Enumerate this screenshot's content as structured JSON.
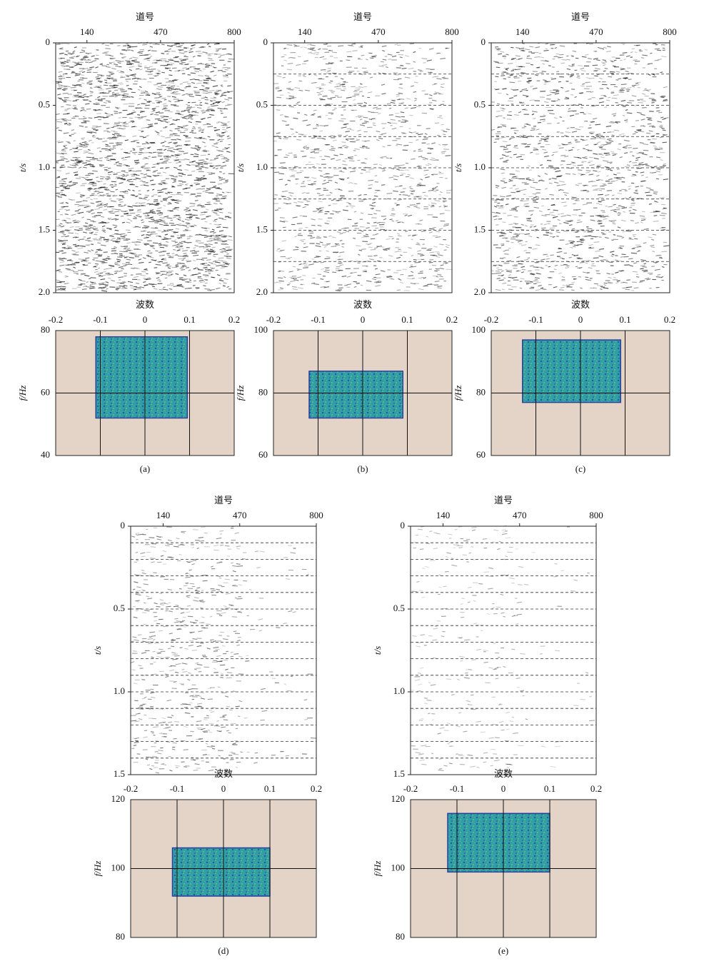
{
  "panels": [
    {
      "label": "(a)",
      "seismic": {
        "xlabel": "道号",
        "ylabel": "t/s",
        "xlim": [
          0,
          800
        ],
        "xticks": [
          140,
          470,
          800
        ],
        "ylim": [
          0,
          2
        ],
        "yticks": [
          0,
          0.5,
          {
            "value": 1,
            "label": "1.0"
          },
          1.5,
          {
            "value": 2,
            "label": "2.0"
          }
        ],
        "dash_times": []
      },
      "spectrum": {
        "xlabel": "波数",
        "ylabel": "f/Hz",
        "xlim": [
          -0.2,
          0.2
        ],
        "xticks": [
          -0.2,
          -0.1,
          0,
          0.1,
          0.2
        ],
        "ylim": [
          40,
          80
        ],
        "yticks": [
          40,
          60,
          80
        ],
        "box": {
          "x": [
            -0.11,
            0.095
          ],
          "y": [
            52,
            78
          ]
        }
      }
    },
    {
      "label": "(b)",
      "seismic": {
        "xlabel": "道号",
        "ylabel": "t/s",
        "xlim": [
          0,
          800
        ],
        "xticks": [
          140,
          470,
          800
        ],
        "ylim": [
          0,
          2
        ],
        "yticks": [
          0,
          0.5,
          {
            "value": 1,
            "label": "1.0"
          },
          1.5,
          {
            "value": 2,
            "label": "2.0"
          }
        ],
        "dash_times": [
          0.25,
          0.5,
          0.75,
          1,
          1.25,
          1.5,
          1.75
        ]
      },
      "spectrum": {
        "xlabel": "波数",
        "ylabel": "f/Hz",
        "xlim": [
          -0.2,
          0.2
        ],
        "xticks": [
          -0.2,
          -0.1,
          0,
          0.1,
          0.2
        ],
        "ylim": [
          60,
          100
        ],
        "yticks": [
          60,
          80,
          100
        ],
        "box": {
          "x": [
            -0.12,
            0.09
          ],
          "y": [
            72,
            87
          ]
        }
      }
    },
    {
      "label": "(c)",
      "seismic": {
        "xlabel": "道号",
        "ylabel": "t/s",
        "xlim": [
          0,
          800
        ],
        "xticks": [
          140,
          470,
          800
        ],
        "ylim": [
          0,
          2
        ],
        "yticks": [
          0,
          0.5,
          {
            "value": 1,
            "label": "1.0"
          },
          1.5,
          {
            "value": 2,
            "label": "2.0"
          }
        ],
        "dash_times": [
          0.25,
          0.5,
          0.75,
          1,
          1.25,
          1.5,
          1.75
        ]
      },
      "spectrum": {
        "xlabel": "波数",
        "ylabel": "f/Hz",
        "xlim": [
          -0.2,
          0.2
        ],
        "xticks": [
          -0.2,
          -0.1,
          0,
          0.1,
          0.2
        ],
        "ylim": [
          60,
          100
        ],
        "yticks": [
          60,
          80,
          100
        ],
        "box": {
          "x": [
            -0.13,
            0.09
          ],
          "y": [
            77,
            97
          ]
        }
      }
    },
    {
      "label": "(d)",
      "seismic": {
        "xlabel": "道号",
        "ylabel": "t/s",
        "xlim": [
          0,
          800
        ],
        "xticks": [
          140,
          470,
          800
        ],
        "ylim": [
          0,
          1.5
        ],
        "yticks": [
          0,
          0.5,
          {
            "value": 1,
            "label": "1.0"
          },
          1.5
        ],
        "dash_times": [
          0.1,
          0.2,
          0.3,
          0.4,
          0.5,
          0.6,
          0.7,
          0.8,
          0.9,
          1,
          1.1,
          1.2,
          1.3,
          1.4
        ]
      },
      "spectrum": {
        "xlabel": "波数",
        "ylabel": "f/Hz",
        "xlim": [
          -0.2,
          0.2
        ],
        "xticks": [
          -0.2,
          -0.1,
          0,
          0.1,
          0.2
        ],
        "ylim": [
          80,
          120
        ],
        "yticks": [
          80,
          100,
          120
        ],
        "box": {
          "x": [
            -0.11,
            0.1
          ],
          "y": [
            92,
            106
          ]
        }
      }
    },
    {
      "label": "(e)",
      "seismic": {
        "xlabel": "道号",
        "ylabel": "t/s",
        "xlim": [
          0,
          800
        ],
        "xticks": [
          140,
          470,
          800
        ],
        "ylim": [
          0,
          1.5
        ],
        "yticks": [
          0,
          0.5,
          {
            "value": 1,
            "label": "1.0"
          },
          1.5
        ],
        "dash_times": [
          0.1,
          0.2,
          0.3,
          0.4,
          0.5,
          0.6,
          0.7,
          0.8,
          0.9,
          1,
          1.1,
          1.2,
          1.3,
          1.4
        ]
      },
      "spectrum": {
        "xlabel": "波数",
        "ylabel": "f/Hz",
        "xlim": [
          -0.2,
          0.2
        ],
        "xticks": [
          -0.2,
          -0.1,
          0,
          0.1,
          0.2
        ],
        "ylim": [
          80,
          120
        ],
        "yticks": [
          80,
          100,
          120
        ],
        "box": {
          "x": [
            -0.12,
            0.1
          ],
          "y": [
            99,
            116
          ]
        }
      }
    }
  ]
}
